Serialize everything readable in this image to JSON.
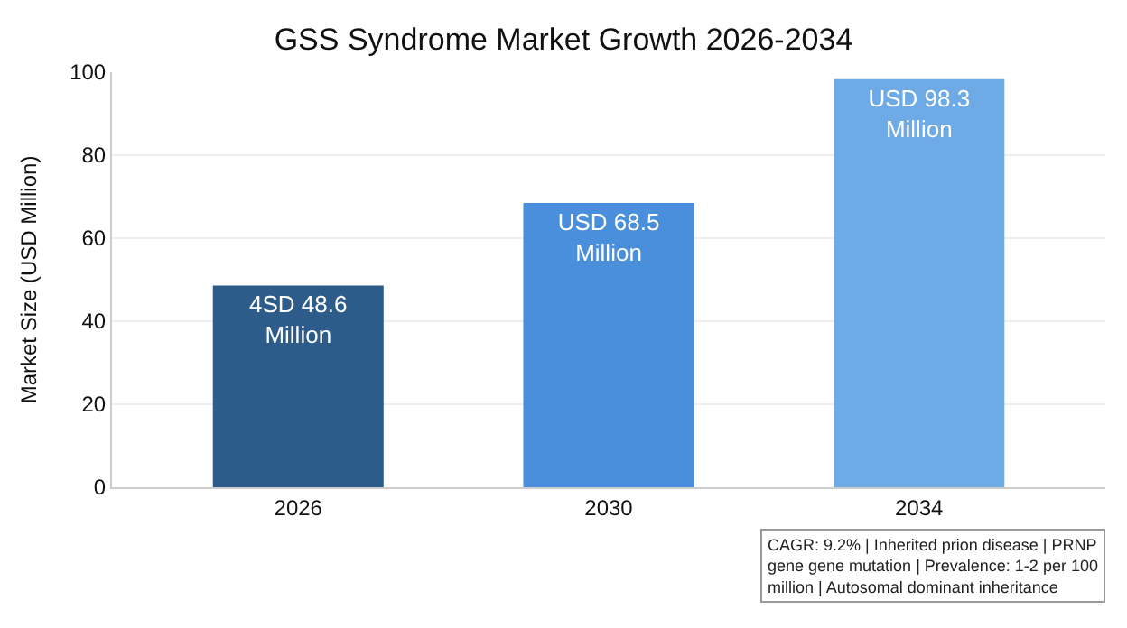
{
  "chart_data": {
    "type": "bar",
    "title": "GSS Syndrome Market Growth 2026-2034",
    "ylabel": "Market Size (USD Million)",
    "categories": [
      "2026",
      "2030",
      "2034"
    ],
    "values": [
      48.6,
      68.5,
      98.3
    ],
    "colors": [
      "#2e5c8a",
      "#4a8fdc",
      "#6eabe6"
    ],
    "value_labels": [
      "4SD 48.6 Million",
      "USD 68.5 Million",
      "USD 98.3 Million"
    ],
    "ylim": [
      0,
      100
    ],
    "yticks": [
      0,
      20,
      40,
      60,
      80,
      100
    ],
    "grid": "y",
    "annotations": [
      "CAGR: 9.2% | Inherited prion disease | PRNP gene gene mutation | Prevalence: 1-2 per 100 million | Autosomal dominant inheritance"
    ]
  }
}
